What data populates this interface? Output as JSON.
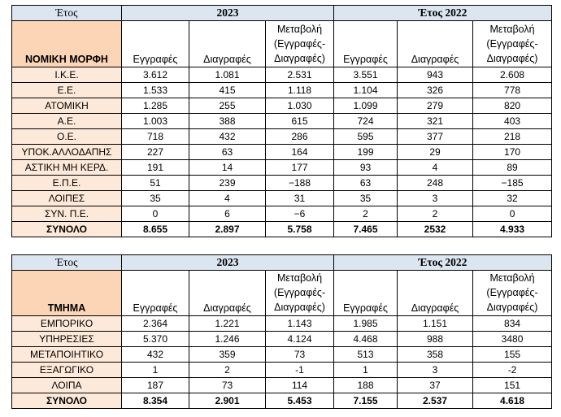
{
  "table1": {
    "etos_label": "Έτος",
    "year_a": "2023",
    "year_b": "Έτος 2022",
    "row_header": "ΝΟΜΙΚΗ ΜΟΡΦΗ",
    "col_reg": "Εγγραφές",
    "col_del": "Διαγραφές",
    "col_change_a": "Μεταβολή (Εγγραφές-Διαγραφές)",
    "col_change_b": "Μεταβολή (Εγγραφές-Διαγραφές)",
    "rows": [
      [
        "Ι.Κ.Ε.",
        "3.612",
        "1.081",
        "2.531",
        "3.551",
        "943",
        "2.608"
      ],
      [
        "Ε.Ε.",
        "1.533",
        "415",
        "1.118",
        "1.104",
        "326",
        "778"
      ],
      [
        "ΑΤΟΜΙΚΗ",
        "1.285",
        "255",
        "1.030",
        "1.099",
        "279",
        "820"
      ],
      [
        "Α.Ε.",
        "1.003",
        "388",
        "615",
        "724",
        "321",
        "403"
      ],
      [
        "Ο.Ε.",
        "718",
        "432",
        "286",
        "595",
        "377",
        "218"
      ],
      [
        "ΥΠΟΚ.ΑΛΛΟΔΑΠΗΣ",
        "227",
        "63",
        "164",
        "199",
        "29",
        "170"
      ],
      [
        "ΑΣΤΙΚΗ ΜΗ ΚΕΡΔ.",
        "191",
        "14",
        "177",
        "93",
        "4",
        "89"
      ],
      [
        "Ε.Π.Ε.",
        "51",
        "239",
        "−188",
        "63",
        "248",
        "−185"
      ],
      [
        "ΛΟΙΠΕΣ",
        "35",
        "4",
        "31",
        "35",
        "3",
        "32"
      ],
      [
        "ΣΥΝ. Π.Ε.",
        "0",
        "6",
        "−6",
        "2",
        "2",
        "0"
      ]
    ],
    "total": [
      "ΣΥΝΟΛΟ",
      "8.655",
      "2.897",
      "5.758",
      "7.465",
      "2532",
      "4.933"
    ]
  },
  "table2": {
    "etos_label": "Έτος",
    "year_a": "2023",
    "year_b": "Έτος 2022",
    "row_header": "ΤΜΗΜΑ",
    "col_reg": "Εγγραφές",
    "col_del": "Διαγραφές",
    "col_change_a": "Μεταβολή (Εγγραφές-Διαγραφές)",
    "col_change_b": "Μεταβολή (Εγγραφές-Διαγραφές)",
    "rows": [
      [
        "ΕΜΠΟΡΙΚΟ",
        "2.364",
        "1.221",
        "1.143",
        "1.985",
        "1.151",
        "834"
      ],
      [
        "ΥΠΗΡΕΣΙΕΣ",
        "5.370",
        "1.246",
        "4.124",
        "4.468",
        "988",
        "3480"
      ],
      [
        "ΜΕΤΑΠΟΙΗΤΙΚΟ",
        "432",
        "359",
        "73",
        "513",
        "358",
        "155"
      ],
      [
        "ΕΞΑΓΩΓΙΚΟ",
        "1",
        "2",
        "-1",
        "1",
        "3",
        "-2"
      ],
      [
        "ΛΟΙΠΑ",
        "187",
        "73",
        "114",
        "188",
        "37",
        "151"
      ]
    ],
    "total": [
      "ΣΥΝΟΛΟ",
      "8.354",
      "2.901",
      "5.453",
      "7.155",
      "2.537",
      "4.618"
    ]
  },
  "colors": {
    "header_blue": "#dce6f1",
    "header_orange": "#fbd5b5",
    "label_peach": "#fde9d9"
  }
}
